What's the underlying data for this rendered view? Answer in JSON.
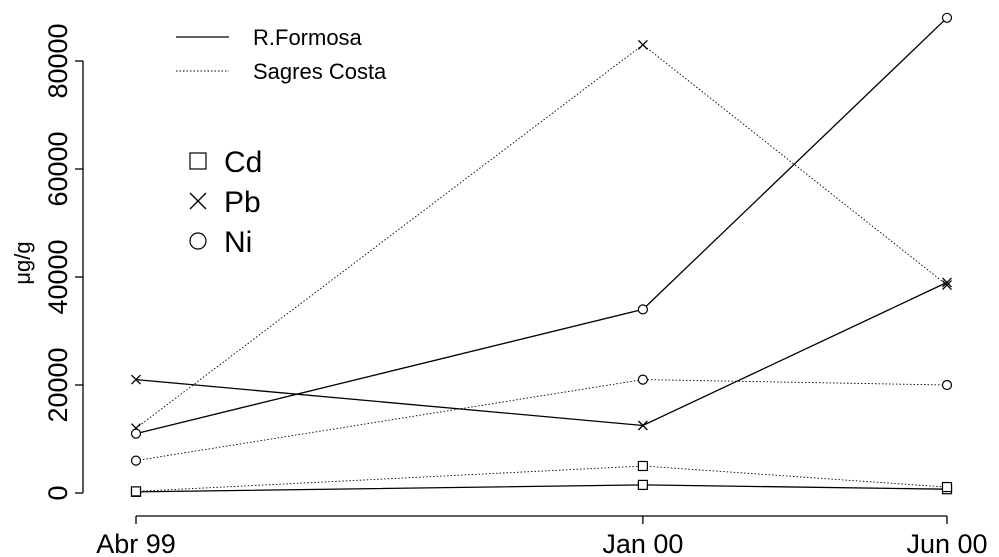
{
  "chart_data": {
    "type": "line",
    "ylabel": "μg/g",
    "xlabel": "",
    "title": "",
    "categories": [
      "Abr 99",
      "Jan 00",
      "Jun 00"
    ],
    "x_positions": [
      0,
      5,
      8
    ],
    "ylim": [
      0,
      88000
    ],
    "yticks": [
      0,
      20000,
      40000,
      60000,
      80000
    ],
    "grid": false,
    "linetype_legend": {
      "placement": "top-left",
      "entries": [
        {
          "label": "R.Formosa",
          "style": "solid"
        },
        {
          "label": "Sagres Costa",
          "style": "dotted"
        }
      ]
    },
    "marker_legend": {
      "placement": "upper-left",
      "entries": [
        {
          "label": "Cd",
          "marker": "square"
        },
        {
          "label": "Pb",
          "marker": "cross"
        },
        {
          "label": "Ni",
          "marker": "circle"
        }
      ]
    },
    "series": [
      {
        "element": "Cd",
        "site": "R.Formosa",
        "marker": "square",
        "style": "solid",
        "values": [
          200,
          1500,
          700
        ]
      },
      {
        "element": "Cd",
        "site": "Sagres Costa",
        "marker": "square",
        "style": "dotted",
        "values": [
          300,
          5000,
          1100
        ]
      },
      {
        "element": "Pb",
        "site": "R.Formosa",
        "marker": "cross",
        "style": "solid",
        "values": [
          21000,
          12500,
          39000
        ]
      },
      {
        "element": "Pb",
        "site": "Sagres Costa",
        "marker": "cross",
        "style": "dotted",
        "values": [
          12000,
          83000,
          38500
        ]
      },
      {
        "element": "Ni",
        "site": "R.Formosa",
        "marker": "circle",
        "style": "solid",
        "values": [
          11000,
          34000,
          88000
        ]
      },
      {
        "element": "Ni",
        "site": "Sagres Costa",
        "marker": "circle",
        "style": "dotted",
        "values": [
          6000,
          21000,
          20000
        ]
      }
    ]
  }
}
